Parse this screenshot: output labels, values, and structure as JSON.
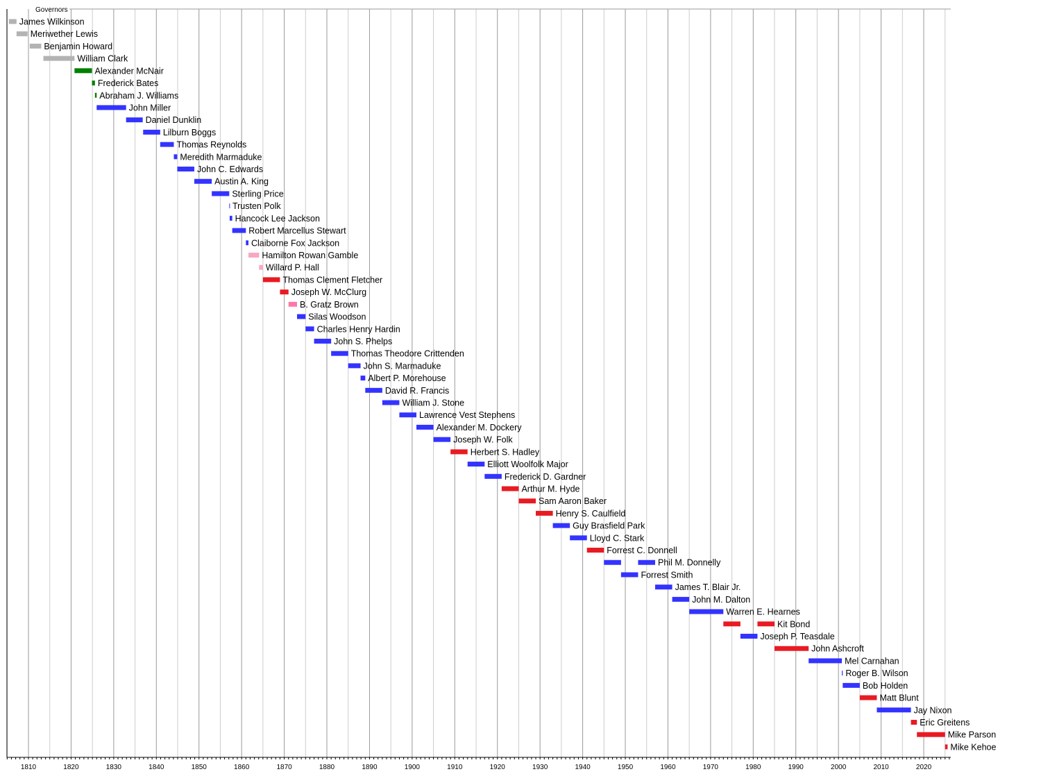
{
  "chart_data": {
    "type": "timeline",
    "title": "Governors",
    "xlim": [
      1805,
      2026
    ],
    "grid": true,
    "x_ticks": [
      1810,
      1820,
      1830,
      1840,
      1850,
      1860,
      1870,
      1880,
      1890,
      1900,
      1910,
      1920,
      1930,
      1940,
      1950,
      1960,
      1970,
      1980,
      1990,
      2000,
      2010,
      2020
    ],
    "colors": {
      "gray": "#b3b3b3",
      "green": "#008000",
      "blue": "#3333ff",
      "red": "#e81b23",
      "lightpink": "#f7a8c4",
      "pink": "#ff77aa"
    },
    "governors": [
      {
        "name": "James Wilkinson",
        "terms": [
          [
            1805.4,
            1807.2
          ]
        ],
        "color": "gray"
      },
      {
        "name": "Meriwether Lewis",
        "terms": [
          [
            1807.2,
            1809.8
          ]
        ],
        "color": "gray"
      },
      {
        "name": "Benjamin Howard",
        "terms": [
          [
            1810.3,
            1813
          ]
        ],
        "color": "gray"
      },
      {
        "name": "William Clark",
        "terms": [
          [
            1813.5,
            1820.8
          ]
        ],
        "color": "gray"
      },
      {
        "name": "Alexander McNair",
        "terms": [
          [
            1820.8,
            1824.9
          ]
        ],
        "color": "green"
      },
      {
        "name": "Frederick Bates",
        "terms": [
          [
            1824.9,
            1825.6
          ]
        ],
        "color": "green"
      },
      {
        "name": "Abraham J. Williams",
        "terms": [
          [
            1825.6,
            1826
          ]
        ],
        "color": "green"
      },
      {
        "name": "John Miller",
        "terms": [
          [
            1826,
            1832.9
          ]
        ],
        "color": "blue"
      },
      {
        "name": "Daniel Dunklin",
        "terms": [
          [
            1832.9,
            1836.8
          ]
        ],
        "color": "blue"
      },
      {
        "name": "Lilburn Boggs",
        "terms": [
          [
            1836.9,
            1840.9
          ]
        ],
        "color": "blue"
      },
      {
        "name": "Thomas Reynolds",
        "terms": [
          [
            1840.9,
            1844.1
          ]
        ],
        "color": "blue"
      },
      {
        "name": "Meredith Marmaduke",
        "terms": [
          [
            1844.1,
            1844.9
          ]
        ],
        "color": "blue"
      },
      {
        "name": "John C. Edwards",
        "terms": [
          [
            1844.9,
            1848.9
          ]
        ],
        "color": "blue"
      },
      {
        "name": "Austin A. King",
        "terms": [
          [
            1848.9,
            1853
          ]
        ],
        "color": "blue"
      },
      {
        "name": "Sterling Price",
        "terms": [
          [
            1853,
            1857.1
          ]
        ],
        "color": "blue"
      },
      {
        "name": "Trusten Polk",
        "terms": [
          [
            1857.1,
            1857.2
          ]
        ],
        "color": "blue"
      },
      {
        "name": "Hancock Lee Jackson",
        "terms": [
          [
            1857.2,
            1857.8
          ]
        ],
        "color": "blue"
      },
      {
        "name": "Robert Marcellus Stewart",
        "terms": [
          [
            1857.8,
            1861
          ]
        ],
        "color": "blue"
      },
      {
        "name": "Claiborne Fox Jackson",
        "terms": [
          [
            1861,
            1861.6
          ]
        ],
        "color": "blue"
      },
      {
        "name": "Hamilton Rowan Gamble",
        "terms": [
          [
            1861.6,
            1864.1
          ]
        ],
        "color": "lightpink"
      },
      {
        "name": "Willard P. Hall",
        "terms": [
          [
            1864.1,
            1865
          ]
        ],
        "color": "lightpink"
      },
      {
        "name": "Thomas Clement Fletcher",
        "terms": [
          [
            1865,
            1869
          ]
        ],
        "color": "red"
      },
      {
        "name": "Joseph W. McClurg",
        "terms": [
          [
            1869,
            1871
          ]
        ],
        "color": "red"
      },
      {
        "name": "B. Gratz Brown",
        "terms": [
          [
            1871,
            1873
          ]
        ],
        "color": "pink"
      },
      {
        "name": "Silas Woodson",
        "terms": [
          [
            1873,
            1875
          ]
        ],
        "color": "blue"
      },
      {
        "name": "Charles Henry Hardin",
        "terms": [
          [
            1875,
            1877
          ]
        ],
        "color": "blue"
      },
      {
        "name": "John S. Phelps",
        "terms": [
          [
            1877,
            1881
          ]
        ],
        "color": "blue"
      },
      {
        "name": "Thomas Theodore Crittenden",
        "terms": [
          [
            1881,
            1885
          ]
        ],
        "color": "blue"
      },
      {
        "name": "John S. Marmaduke",
        "terms": [
          [
            1885,
            1887.9
          ]
        ],
        "color": "blue"
      },
      {
        "name": "Albert P. Morehouse",
        "terms": [
          [
            1887.9,
            1889
          ]
        ],
        "color": "blue"
      },
      {
        "name": "David R. Francis",
        "terms": [
          [
            1889,
            1893
          ]
        ],
        "color": "blue"
      },
      {
        "name": "William J. Stone",
        "terms": [
          [
            1893,
            1897
          ]
        ],
        "color": "blue"
      },
      {
        "name": "Lawrence Vest Stephens",
        "terms": [
          [
            1897,
            1901
          ]
        ],
        "color": "blue"
      },
      {
        "name": "Alexander M. Dockery",
        "terms": [
          [
            1901,
            1905
          ]
        ],
        "color": "blue"
      },
      {
        "name": "Joseph W. Folk",
        "terms": [
          [
            1905,
            1909
          ]
        ],
        "color": "blue"
      },
      {
        "name": "Herbert S. Hadley",
        "terms": [
          [
            1909,
            1913
          ]
        ],
        "color": "red"
      },
      {
        "name": "Elliott Woolfolk Major",
        "terms": [
          [
            1913,
            1917
          ]
        ],
        "color": "blue"
      },
      {
        "name": "Frederick D. Gardner",
        "terms": [
          [
            1917,
            1921
          ]
        ],
        "color": "blue"
      },
      {
        "name": "Arthur M. Hyde",
        "terms": [
          [
            1921,
            1925
          ]
        ],
        "color": "red"
      },
      {
        "name": "Sam Aaron Baker",
        "terms": [
          [
            1925,
            1929
          ]
        ],
        "color": "red"
      },
      {
        "name": "Henry S. Caulfield",
        "terms": [
          [
            1929,
            1933
          ]
        ],
        "color": "red"
      },
      {
        "name": "Guy Brasfield Park",
        "terms": [
          [
            1933,
            1937
          ]
        ],
        "color": "blue"
      },
      {
        "name": "Lloyd C. Stark",
        "terms": [
          [
            1937,
            1941
          ]
        ],
        "color": "blue"
      },
      {
        "name": "Forrest C. Donnell",
        "terms": [
          [
            1941,
            1945
          ]
        ],
        "color": "red"
      },
      {
        "name": "Phil M. Donnelly",
        "terms": [
          [
            1945,
            1949
          ],
          [
            1953,
            1957
          ]
        ],
        "color": "blue"
      },
      {
        "name": "Forrest Smith",
        "terms": [
          [
            1949,
            1953
          ]
        ],
        "color": "blue"
      },
      {
        "name": "James T. Blair Jr.",
        "terms": [
          [
            1957,
            1961
          ]
        ],
        "color": "blue"
      },
      {
        "name": "John M. Dalton",
        "terms": [
          [
            1961,
            1965
          ]
        ],
        "color": "blue"
      },
      {
        "name": "Warren E. Hearnes",
        "terms": [
          [
            1965,
            1973
          ]
        ],
        "color": "blue"
      },
      {
        "name": "Kit Bond",
        "terms": [
          [
            1973,
            1977
          ],
          [
            1981,
            1985
          ]
        ],
        "color": "red"
      },
      {
        "name": "Joseph P. Teasdale",
        "terms": [
          [
            1977,
            1981
          ]
        ],
        "color": "blue"
      },
      {
        "name": "John Ashcroft",
        "terms": [
          [
            1985,
            1993
          ]
        ],
        "color": "red"
      },
      {
        "name": "Mel Carnahan",
        "terms": [
          [
            1993,
            2000.8
          ]
        ],
        "color": "blue"
      },
      {
        "name": "Roger B. Wilson",
        "terms": [
          [
            2000.8,
            2001
          ]
        ],
        "color": "blue"
      },
      {
        "name": "Bob Holden",
        "terms": [
          [
            2001,
            2005
          ]
        ],
        "color": "blue"
      },
      {
        "name": "Matt Blunt",
        "terms": [
          [
            2005,
            2009
          ]
        ],
        "color": "red"
      },
      {
        "name": "Jay Nixon",
        "terms": [
          [
            2009,
            2017
          ]
        ],
        "color": "blue"
      },
      {
        "name": "Eric Greitens",
        "terms": [
          [
            2017,
            2018.4
          ]
        ],
        "color": "red"
      },
      {
        "name": "Mike Parson",
        "terms": [
          [
            2018.4,
            2025
          ]
        ],
        "color": "red"
      },
      {
        "name": "Mike Kehoe",
        "terms": [
          [
            2025,
            2025.6
          ]
        ],
        "color": "red"
      }
    ]
  }
}
